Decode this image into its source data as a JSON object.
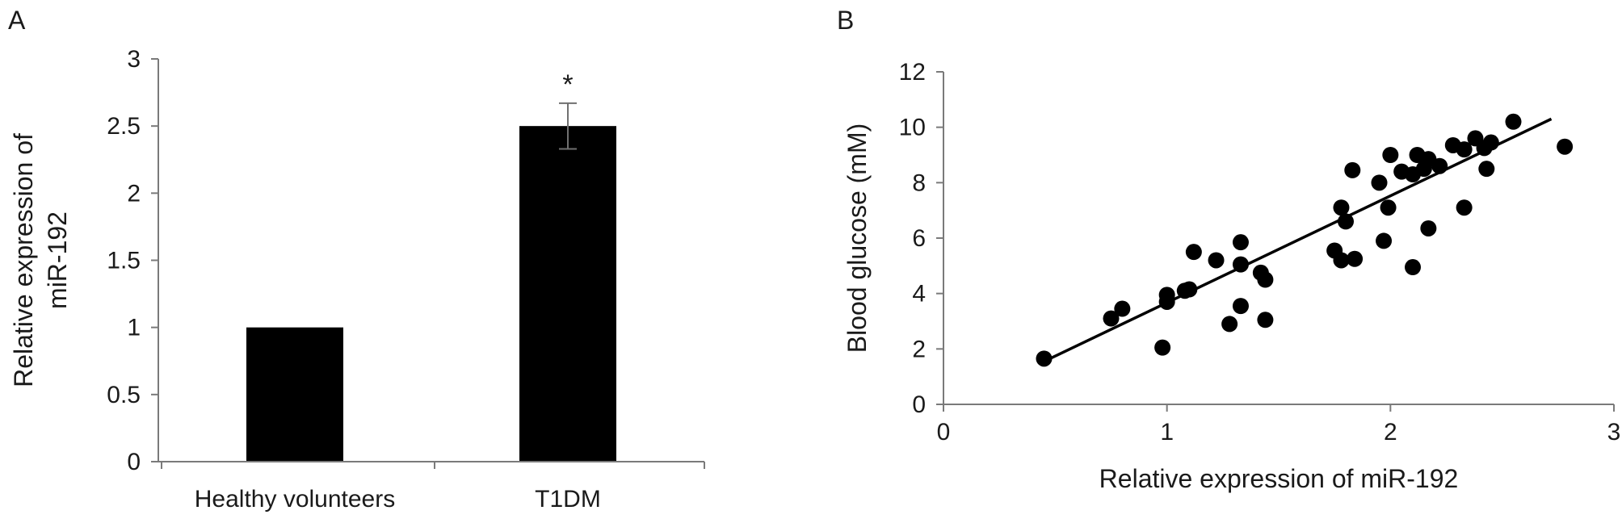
{
  "chart_data": [
    {
      "panel": "A",
      "type": "bar",
      "categories": [
        "Healthy volunteers",
        "T1DM"
      ],
      "values": [
        1.0,
        2.5
      ],
      "error": [
        0.0,
        0.17
      ],
      "annotations": [
        "",
        "*"
      ],
      "xlabel": "",
      "ylabel_lines": [
        "Relative expression of",
        "miR-192"
      ],
      "ylim": [
        0,
        3
      ],
      "yticks": [
        0,
        0.5,
        1,
        1.5,
        2,
        2.5,
        3
      ],
      "ytick_labels": [
        "0",
        "0.5",
        "1",
        "1.5",
        "2",
        "2.5",
        "3"
      ],
      "bar_color": "#000000",
      "grid": false
    },
    {
      "panel": "B",
      "type": "scatter",
      "xlabel": "Relative expression of miR-192",
      "ylabel": "Blood glucose (mM)",
      "xlim": [
        0,
        3
      ],
      "ylim": [
        0,
        12
      ],
      "xticks": [
        0,
        1,
        2,
        3
      ],
      "xtick_labels": [
        "0",
        "1",
        "2",
        "3"
      ],
      "yticks": [
        0,
        2,
        4,
        6,
        8,
        10,
        12
      ],
      "ytick_labels": [
        "0",
        "2",
        "4",
        "6",
        "8",
        "10",
        "12"
      ],
      "points": [
        [
          0.45,
          1.65
        ],
        [
          0.75,
          3.1
        ],
        [
          0.8,
          3.45
        ],
        [
          0.98,
          2.05
        ],
        [
          1.0,
          3.95
        ],
        [
          1.0,
          3.7
        ],
        [
          1.08,
          4.1
        ],
        [
          1.1,
          4.15
        ],
        [
          1.12,
          5.5
        ],
        [
          1.22,
          5.2
        ],
        [
          1.28,
          2.9
        ],
        [
          1.33,
          5.85
        ],
        [
          1.33,
          5.05
        ],
        [
          1.33,
          3.55
        ],
        [
          1.42,
          4.75
        ],
        [
          1.44,
          4.5
        ],
        [
          1.44,
          3.05
        ],
        [
          1.75,
          5.55
        ],
        [
          1.78,
          5.2
        ],
        [
          1.78,
          7.1
        ],
        [
          1.8,
          6.6
        ],
        [
          1.83,
          8.45
        ],
        [
          1.84,
          5.25
        ],
        [
          1.95,
          8.0
        ],
        [
          1.97,
          5.9
        ],
        [
          1.99,
          7.1
        ],
        [
          2.0,
          9.0
        ],
        [
          2.05,
          8.4
        ],
        [
          2.1,
          4.95
        ],
        [
          2.1,
          8.3
        ],
        [
          2.12,
          9.0
        ],
        [
          2.15,
          8.5
        ],
        [
          2.17,
          8.85
        ],
        [
          2.17,
          6.35
        ],
        [
          2.22,
          8.6
        ],
        [
          2.28,
          9.35
        ],
        [
          2.33,
          9.2
        ],
        [
          2.33,
          7.1
        ],
        [
          2.38,
          9.6
        ],
        [
          2.42,
          9.25
        ],
        [
          2.43,
          8.5
        ],
        [
          2.45,
          9.45
        ],
        [
          2.55,
          10.2
        ],
        [
          2.78,
          9.3
        ]
      ],
      "trendline": {
        "x": [
          0.45,
          2.72
        ],
        "y": [
          1.55,
          10.3
        ]
      },
      "marker_color": "#000000",
      "grid": false
    }
  ]
}
